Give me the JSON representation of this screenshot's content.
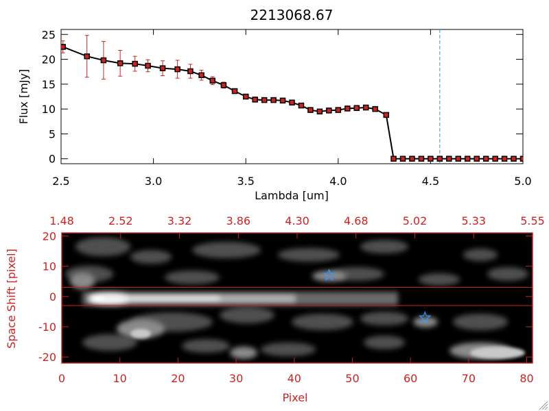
{
  "chart_data": [
    {
      "type": "line",
      "title": "2213068.67",
      "xlabel": "Lambda [um]",
      "ylabel": "Flux [mJy]",
      "xlim": [
        2.5,
        5.0
      ],
      "ylim": [
        -1,
        26
      ],
      "xticks": [
        "2.5",
        "3.0",
        "3.5",
        "4.0",
        "4.5",
        "5.0"
      ],
      "yticks": [
        "0",
        "5",
        "10",
        "15",
        "20",
        "25"
      ],
      "reference_line_x": 4.55,
      "colors": {
        "line": "#000000",
        "marker": "#cc2222",
        "errorbar": "#cc2222",
        "reference": "#3399cc"
      },
      "series": [
        {
          "x": [
            2.51,
            2.64,
            2.73,
            2.82,
            2.9,
            2.97,
            3.05,
            3.13,
            3.2,
            3.26,
            3.32,
            3.38,
            3.44,
            3.5,
            3.55,
            3.6,
            3.65,
            3.7,
            3.75,
            3.8,
            3.85,
            3.9,
            3.95,
            4.0,
            4.05,
            4.1,
            4.15,
            4.2,
            4.26,
            4.3,
            4.35,
            4.4,
            4.45,
            4.5,
            4.55,
            4.6,
            4.65,
            4.7,
            4.75,
            4.8,
            4.85,
            4.9,
            4.95,
            5.0
          ],
          "y": [
            22.5,
            20.6,
            19.8,
            19.2,
            19.1,
            18.7,
            18.2,
            18.0,
            17.6,
            16.8,
            15.7,
            14.8,
            13.6,
            12.5,
            11.9,
            11.8,
            11.8,
            11.7,
            11.3,
            10.7,
            9.8,
            9.5,
            9.7,
            9.8,
            10.1,
            10.2,
            10.3,
            10.0,
            8.8,
            0.0,
            0.0,
            0.0,
            0.0,
            0.0,
            0.0,
            0.0,
            0.0,
            0.0,
            0.0,
            0.0,
            0.0,
            0.0,
            0.0,
            0.0
          ],
          "yerr": [
            1.2,
            4.2,
            3.8,
            2.6,
            1.5,
            1.2,
            1.5,
            1.8,
            1.4,
            1.0,
            0.8,
            0.6,
            0.4,
            0.3,
            0.3,
            0.3,
            0.3,
            0.3,
            0.3,
            0.3,
            0.3,
            0.3,
            0.3,
            0.3,
            0.3,
            0.3,
            0.3,
            0.3,
            0.5,
            0,
            0,
            0,
            0,
            0,
            0,
            0,
            0,
            0,
            0,
            0,
            0,
            0,
            0,
            0
          ]
        }
      ]
    },
    {
      "type": "heatmap",
      "xlabel": "Pixel",
      "ylabel": "Space Shift [pixel]",
      "xlim": [
        0,
        81
      ],
      "ylim": [
        -22,
        21
      ],
      "xticks": [
        "0",
        "10",
        "20",
        "30",
        "40",
        "50",
        "60",
        "70",
        "80"
      ],
      "yticks": [
        "-20",
        "-10",
        "0",
        "10",
        "20"
      ],
      "top_ticks": [
        "1.48",
        "2.52",
        "3.32",
        "3.86",
        "4.30",
        "4.68",
        "5.02",
        "5.33",
        "5.55"
      ],
      "extraction_lines_y": [
        3,
        -3
      ],
      "trace": {
        "y": 0,
        "x_start": 7,
        "x_end": 62
      },
      "stars": [
        {
          "x": 46,
          "y": 7
        },
        {
          "x": 62.5,
          "y": -7
        }
      ],
      "colors": {
        "frame": "#cc2222",
        "lines": "#cc2222",
        "star": "#3399ff",
        "background": "#000000"
      }
    }
  ]
}
